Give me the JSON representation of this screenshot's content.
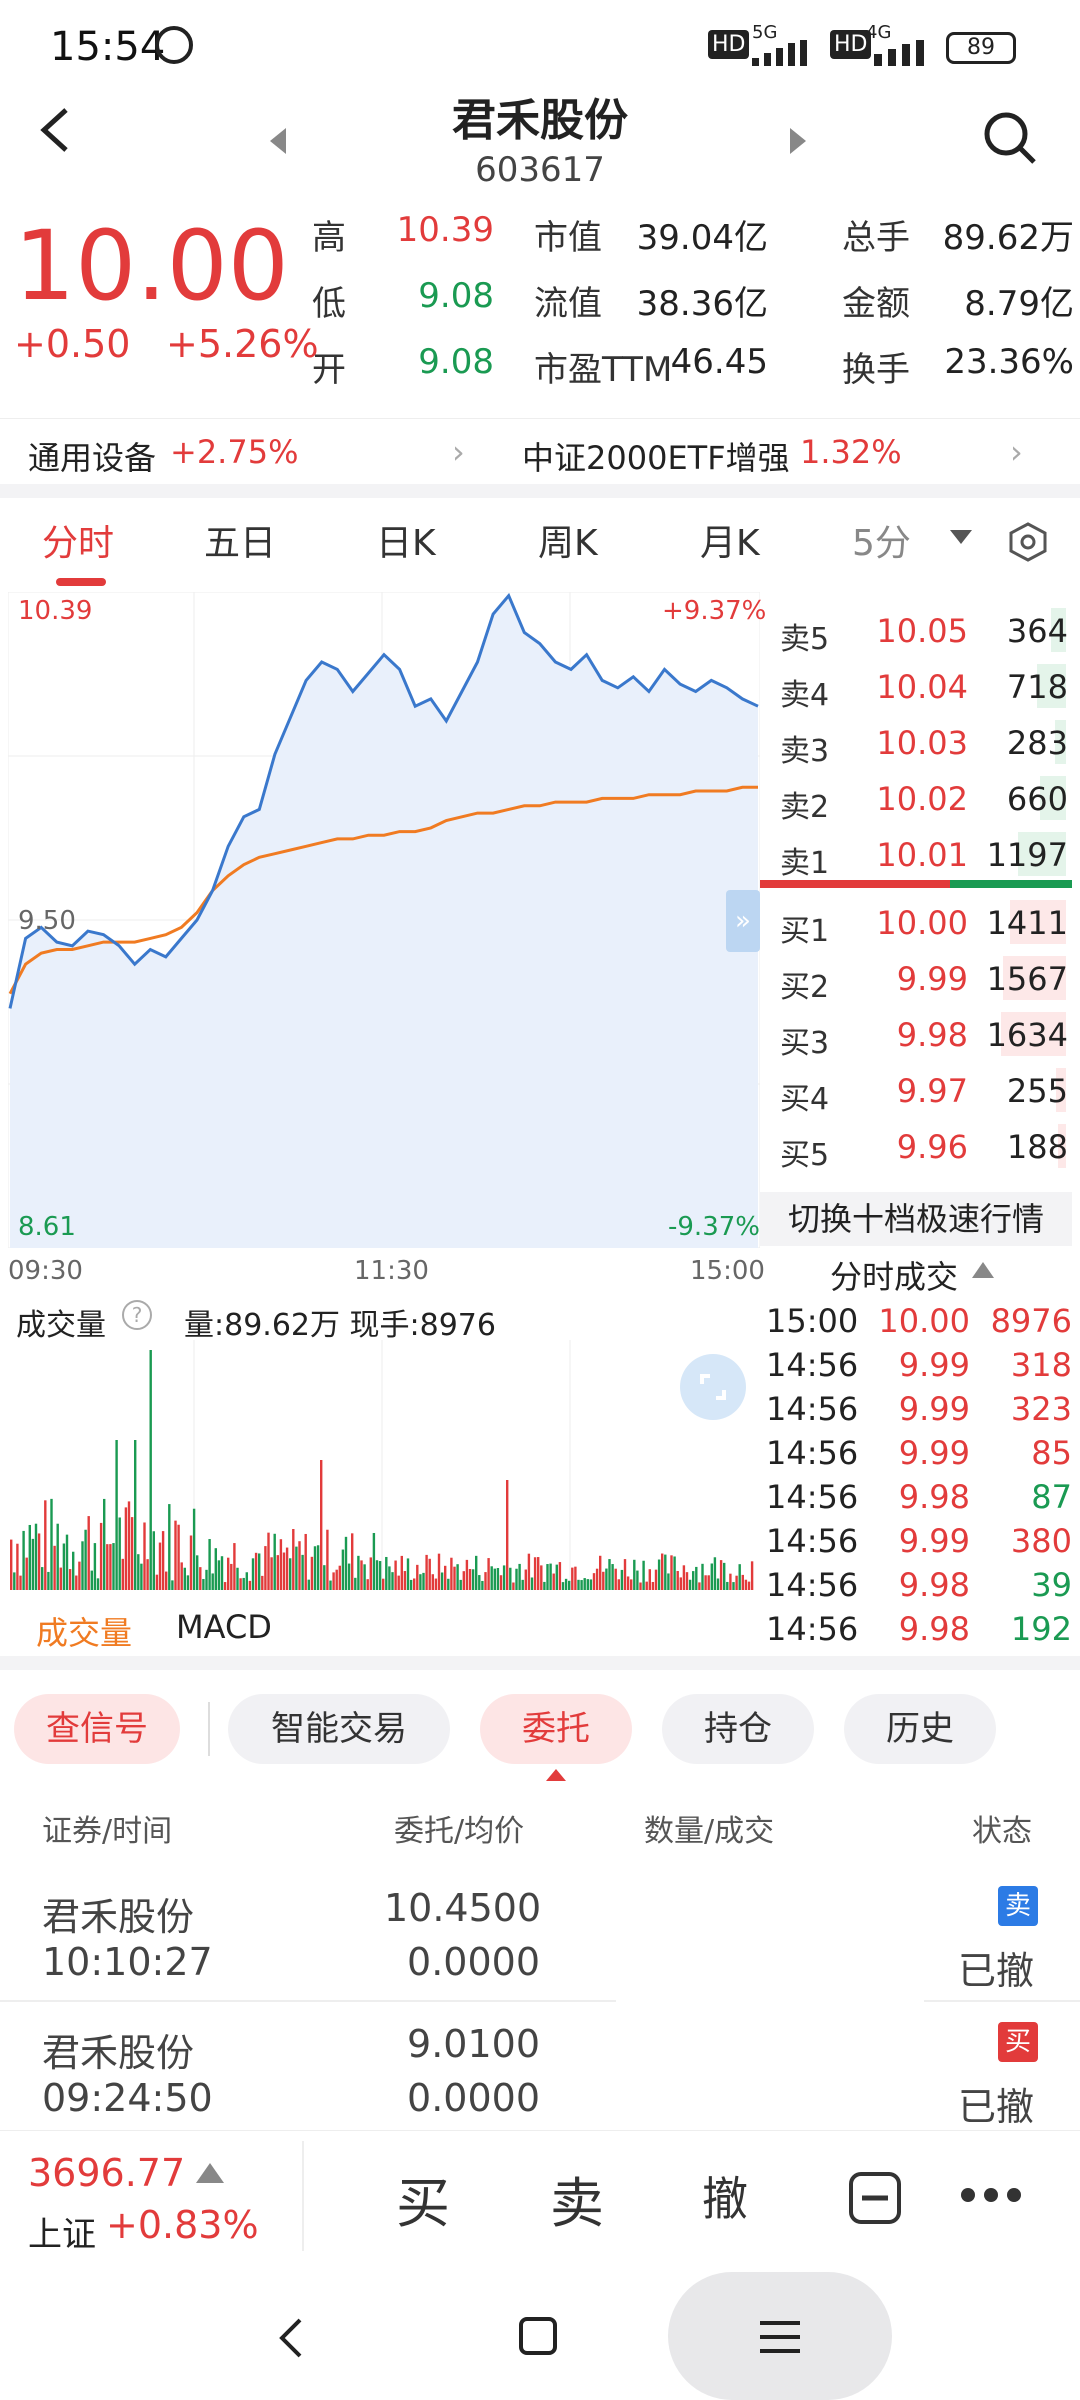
{
  "status": {
    "time": "15:54",
    "net1": "HD",
    "net1_gen": "5G",
    "net2": "HD",
    "net2_gen": "4G",
    "battery": "89"
  },
  "header": {
    "name": "君禾股份",
    "code": "603617"
  },
  "quote": {
    "price": "10.00",
    "change": "+0.50",
    "change_pct": "+5.26%",
    "stats": [
      {
        "label": "高",
        "value": "10.39",
        "color": "red"
      },
      {
        "label": "市值",
        "value": "39.04亿",
        "color": "black"
      },
      {
        "label": "总手",
        "value": "89.62万",
        "color": "black"
      },
      {
        "label": "低",
        "value": "9.08",
        "color": "green"
      },
      {
        "label": "流值",
        "value": "38.36亿",
        "color": "black"
      },
      {
        "label": "金额",
        "value": "8.79亿",
        "color": "black"
      },
      {
        "label": "开",
        "value": "9.08",
        "color": "green"
      },
      {
        "label": "市盈TTM",
        "value": "46.45",
        "color": "black"
      },
      {
        "label": "换手",
        "value": "23.36%",
        "color": "black"
      }
    ]
  },
  "sector": [
    {
      "name": "通用设备",
      "pct": "+2.75%"
    },
    {
      "name": "中证2000ETF增强",
      "pct": "1.32%"
    }
  ],
  "tabs": [
    "分时",
    "五日",
    "日K",
    "周K",
    "月K",
    "5分"
  ],
  "chart": {
    "top_price": "10.39",
    "mid_price": "9.50",
    "bottom_price": "8.61",
    "top_pct": "+9.37%",
    "bottom_pct": "-9.37%",
    "x_labels": [
      "09:30",
      "11:30",
      "15:00"
    ],
    "volume_label": "成交量",
    "volume_info": "量:89.62万 现手:8976",
    "indicators": [
      "成交量",
      "MACD"
    ]
  },
  "chart_data": {
    "type": "line",
    "price_series": [
      9.26,
      9.45,
      9.48,
      9.44,
      9.43,
      9.47,
      9.46,
      9.43,
      9.38,
      9.42,
      9.4,
      9.45,
      9.5,
      9.58,
      9.7,
      9.78,
      9.8,
      9.95,
      10.05,
      10.15,
      10.2,
      10.18,
      10.12,
      10.17,
      10.22,
      10.18,
      10.08,
      10.1,
      10.04,
      10.12,
      10.2,
      10.33,
      10.38,
      10.28,
      10.25,
      10.2,
      10.18,
      10.22,
      10.15,
      10.13,
      10.16,
      10.12,
      10.18,
      10.14,
      10.12,
      10.15,
      10.13,
      10.1,
      10.08
    ],
    "avg_series": [
      9.3,
      9.38,
      9.41,
      9.42,
      9.42,
      9.43,
      9.44,
      9.44,
      9.44,
      9.45,
      9.46,
      9.48,
      9.52,
      9.58,
      9.62,
      9.65,
      9.67,
      9.68,
      9.69,
      9.7,
      9.71,
      9.72,
      9.72,
      9.73,
      9.73,
      9.74,
      9.74,
      9.75,
      9.77,
      9.78,
      9.79,
      9.79,
      9.8,
      9.81,
      9.81,
      9.82,
      9.82,
      9.82,
      9.83,
      9.83,
      9.83,
      9.84,
      9.84,
      9.84,
      9.85,
      9.85,
      9.85,
      9.86,
      9.86
    ],
    "ylim": [
      8.61,
      10.39
    ]
  },
  "orderbook": {
    "asks": [
      {
        "label": "卖5",
        "price": "10.05",
        "vol": "364"
      },
      {
        "label": "卖4",
        "price": "10.04",
        "vol": "718"
      },
      {
        "label": "卖3",
        "price": "10.03",
        "vol": "283"
      },
      {
        "label": "卖2",
        "price": "10.02",
        "vol": "660"
      },
      {
        "label": "卖1",
        "price": "10.01",
        "vol": "1197"
      }
    ],
    "bids": [
      {
        "label": "买1",
        "price": "10.00",
        "vol": "1411"
      },
      {
        "label": "买2",
        "price": "9.99",
        "vol": "1567"
      },
      {
        "label": "买3",
        "price": "9.98",
        "vol": "1634"
      },
      {
        "label": "买4",
        "price": "9.97",
        "vol": "255"
      },
      {
        "label": "买5",
        "price": "9.96",
        "vol": "188"
      }
    ],
    "switch_label": "切换十档极速行情",
    "trades_title": "分时成交"
  },
  "trades": [
    {
      "time": "15:00",
      "price": "10.00",
      "vol": "8976",
      "color": "red"
    },
    {
      "time": "14:56",
      "price": "9.99",
      "vol": "318",
      "color": "red"
    },
    {
      "time": "14:56",
      "price": "9.99",
      "vol": "323",
      "color": "red"
    },
    {
      "time": "14:56",
      "price": "9.99",
      "vol": "85",
      "color": "red"
    },
    {
      "time": "14:56",
      "price": "9.98",
      "vol": "87",
      "color": "green"
    },
    {
      "time": "14:56",
      "price": "9.99",
      "vol": "380",
      "color": "red"
    },
    {
      "time": "14:56",
      "price": "9.98",
      "vol": "39",
      "color": "green"
    },
    {
      "time": "14:56",
      "price": "9.98",
      "vol": "192",
      "color": "green"
    }
  ],
  "bottom_tabs": [
    "查信号",
    "智能交易",
    "委托",
    "持仓",
    "历史"
  ],
  "orders_header": [
    "证券/时间",
    "委托/均价",
    "数量/成交",
    "状态"
  ],
  "orders": [
    {
      "name": "君禾股份",
      "time": "10:10:27",
      "price": "10.4500",
      "avg": "0.0000",
      "side": "卖",
      "status": "已撤"
    },
    {
      "name": "君禾股份",
      "time": "09:24:50",
      "price": "9.0100",
      "avg": "0.0000",
      "side": "买",
      "status": "已撤"
    }
  ],
  "index": {
    "value": "3696.77",
    "name": "上证",
    "pct": "+0.83%"
  },
  "actions": [
    "买",
    "卖",
    "撤"
  ]
}
